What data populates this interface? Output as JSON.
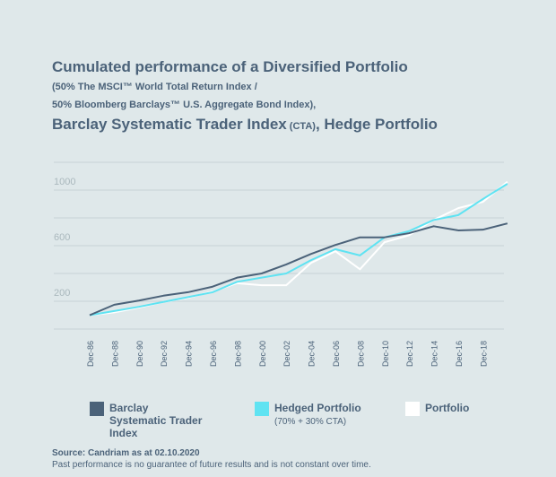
{
  "chart_data": {
    "type": "line",
    "title": [
      "Cumulated performance of a Diversified Portfolio",
      "(50% The MSCI™ World Total Return Index /",
      "50% Bloomberg Barclays™ U.S. Aggregate Bond Index),",
      "Barclay Systematic Trader Index",
      " (CTA)",
      ", Hedge Portfolio"
    ],
    "categories": [
      "Dec-86",
      "Dec-88",
      "Dec-90",
      "Dec-92",
      "Dec-94",
      "Dec-96",
      "Dec-98",
      "Dec-00",
      "Dec-02",
      "Dec-04",
      "Dec-06",
      "Dec-08",
      "Dec-10",
      "Dec-12",
      "Dec-14",
      "Dec-16",
      "Dec-18",
      null
    ],
    "series": [
      {
        "name": "Barclay Systematic Trader Index",
        "color": "#4b6279",
        "values": [
          100,
          175,
          205,
          240,
          265,
          305,
          370,
          400,
          465,
          540,
          605,
          660,
          660,
          690,
          740,
          710,
          715,
          760
        ]
      },
      {
        "name": "Hedged Portfolio",
        "note": "(70% + 30% CTA)",
        "color": "#5fe3f2",
        "values": [
          100,
          130,
          160,
          195,
          230,
          265,
          340,
          370,
          400,
          495,
          575,
          530,
          660,
          705,
          785,
          820,
          935,
          1045
        ]
      },
      {
        "name": "Portfolio",
        "color": "#ffffff",
        "values": [
          100,
          120,
          155,
          195,
          225,
          270,
          330,
          315,
          315,
          475,
          560,
          430,
          625,
          675,
          785,
          870,
          915,
          1060
        ]
      }
    ],
    "ylim": [
      0,
      1200
    ],
    "yticks": [
      200,
      600,
      1000
    ],
    "ygrid": [
      0,
      200,
      400,
      600,
      800,
      1000,
      1200
    ],
    "source": "Source: Candriam as at 02.10.2020",
    "disclaimer": "Past performance is no guarantee of future results and is not constant over time."
  }
}
